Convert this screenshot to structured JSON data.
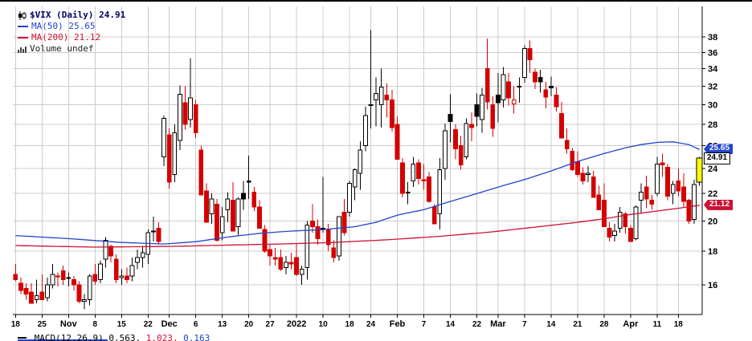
{
  "header": {
    "symbol_title": "$VIX (Daily) 24.91",
    "ma50_label": "MA(50) 25.65",
    "ma200_label": "MA(200) 21.12",
    "volume_label": "Volume undef"
  },
  "price_labels": {
    "ma50": "25.65",
    "last": "24.91",
    "ma200": "21.12"
  },
  "footer": {
    "macd_text": "MACD(12,26,9) 0.563,",
    "signal_text": "1.023,",
    "hist_text": "0.163"
  },
  "colors": {
    "ma50": "#2244cc",
    "ma200": "#cc1133",
    "up": "#000000",
    "down": "#d40000",
    "grid": "#cccccc",
    "highlight": "#ffff00",
    "title": "#000066"
  },
  "chart_data": {
    "type": "candlestick",
    "symbol": "$VIX",
    "timeframe": "Daily",
    "last_close": 24.91,
    "volume": "undef",
    "y_axis": {
      "scale": "log",
      "ticks": [
        16,
        18,
        20,
        22,
        24,
        26,
        28,
        30,
        32,
        34,
        36,
        38
      ]
    },
    "x_ticks": [
      {
        "i": 0,
        "label": "18"
      },
      {
        "i": 5,
        "label": "25"
      },
      {
        "i": 10,
        "label": "Nov",
        "bold": true
      },
      {
        "i": 15,
        "label": "8"
      },
      {
        "i": 20,
        "label": "15"
      },
      {
        "i": 25,
        "label": "22"
      },
      {
        "i": 29,
        "label": "Dec",
        "bold": true
      },
      {
        "i": 34,
        "label": "6"
      },
      {
        "i": 39,
        "label": "13"
      },
      {
        "i": 44,
        "label": "20"
      },
      {
        "i": 48,
        "label": "27"
      },
      {
        "i": 53,
        "label": "2022",
        "bold": true
      },
      {
        "i": 58,
        "label": "10"
      },
      {
        "i": 63,
        "label": "18"
      },
      {
        "i": 67,
        "label": "24"
      },
      {
        "i": 72,
        "label": "Feb",
        "bold": true
      },
      {
        "i": 77,
        "label": "7"
      },
      {
        "i": 82,
        "label": "14"
      },
      {
        "i": 87,
        "label": "22"
      },
      {
        "i": 91,
        "label": "Mar",
        "bold": true
      },
      {
        "i": 96,
        "label": "7"
      },
      {
        "i": 101,
        "label": "14"
      },
      {
        "i": 106,
        "label": "21"
      },
      {
        "i": 111,
        "label": "28"
      },
      {
        "i": 116,
        "label": "Apr",
        "bold": true
      },
      {
        "i": 121,
        "label": "11"
      },
      {
        "i": 125,
        "label": "18"
      }
    ],
    "candles": [
      [
        16.6,
        17.2,
        16.2,
        16.3
      ],
      [
        16.1,
        16.4,
        15.5,
        15.7
      ],
      [
        15.8,
        16.1,
        15.2,
        15.5
      ],
      [
        15.6,
        16.1,
        15.0,
        15.0
      ],
      [
        15.2,
        16.3,
        15.0,
        15.4
      ],
      [
        15.6,
        16.6,
        15.2,
        15.2
      ],
      [
        15.3,
        16.4,
        15.1,
        16.0
      ],
      [
        16.0,
        17.2,
        15.8,
        16.6
      ],
      [
        16.5,
        16.7,
        15.9,
        16.5
      ],
      [
        16.8,
        17.1,
        16.0,
        16.3
      ],
      [
        16.4,
        16.7,
        15.9,
        16.4
      ],
      [
        16.3,
        16.5,
        15.7,
        16.0
      ],
      [
        16.0,
        16.2,
        15.0,
        15.1
      ],
      [
        15.1,
        15.5,
        14.7,
        15.2
      ],
      [
        15.2,
        16.6,
        14.9,
        16.5
      ],
      [
        16.6,
        17.2,
        16.0,
        16.2
      ],
      [
        16.3,
        17.4,
        16.1,
        17.2
      ],
      [
        17.5,
        18.9,
        17.0,
        18.7
      ],
      [
        18.3,
        18.4,
        17.3,
        17.7
      ],
      [
        17.5,
        17.8,
        16.1,
        16.3
      ],
      [
        16.4,
        16.9,
        16.0,
        16.5
      ],
      [
        16.5,
        17.0,
        16.1,
        16.3
      ],
      [
        16.5,
        17.6,
        16.2,
        17.1
      ],
      [
        17.3,
        18.1,
        16.9,
        17.6
      ],
      [
        17.6,
        18.3,
        17.0,
        17.9
      ],
      [
        17.8,
        19.4,
        17.2,
        19.2
      ],
      [
        19.3,
        20.3,
        18.6,
        19.3
      ],
      [
        19.5,
        19.9,
        18.4,
        18.6
      ],
      [
        25.0,
        28.9,
        24.2,
        28.6
      ],
      [
        27.0,
        27.6,
        22.4,
        22.9
      ],
      [
        23.5,
        28.0,
        22.9,
        27.2
      ],
      [
        26.5,
        32.1,
        25.6,
        31.1
      ],
      [
        30.2,
        32.0,
        27.5,
        28.0
      ],
      [
        28.5,
        35.3,
        27.7,
        30.7
      ],
      [
        30.0,
        30.5,
        26.7,
        27.2
      ],
      [
        25.6,
        26.0,
        21.9,
        21.9
      ],
      [
        22.2,
        22.8,
        19.9,
        19.9
      ],
      [
        20.5,
        22.0,
        19.8,
        21.6
      ],
      [
        21.2,
        21.6,
        18.6,
        18.7
      ],
      [
        19.2,
        21.0,
        18.7,
        20.3
      ],
      [
        20.8,
        22.1,
        19.9,
        21.6
      ],
      [
        21.5,
        22.9,
        19.3,
        19.3
      ],
      [
        19.6,
        21.7,
        19.0,
        21.6
      ],
      [
        22.0,
        23.0,
        20.8,
        21.6
      ],
      [
        23.0,
        25.1,
        21.6,
        22.9
      ],
      [
        22.1,
        22.5,
        20.7,
        21.0
      ],
      [
        21.0,
        21.5,
        19.5,
        19.5
      ],
      [
        19.4,
        19.7,
        17.9,
        18.0
      ],
      [
        18.1,
        18.4,
        17.1,
        17.7
      ],
      [
        17.6,
        18.2,
        17.1,
        17.5
      ],
      [
        17.6,
        18.1,
        16.8,
        16.9
      ],
      [
        17.0,
        17.7,
        16.6,
        17.3
      ],
      [
        17.3,
        17.9,
        16.9,
        17.2
      ],
      [
        17.6,
        18.5,
        16.5,
        16.6
      ],
      [
        16.6,
        17.1,
        16.0,
        16.9
      ],
      [
        17.0,
        20.0,
        16.3,
        19.7
      ],
      [
        20.0,
        21.2,
        19.2,
        19.6
      ],
      [
        19.6,
        20.1,
        18.4,
        18.8
      ],
      [
        19.5,
        23.3,
        19.2,
        19.4
      ],
      [
        19.4,
        19.8,
        18.0,
        18.4
      ],
      [
        18.2,
        18.7,
        17.3,
        17.6
      ],
      [
        17.7,
        20.3,
        17.4,
        20.3
      ],
      [
        20.6,
        21.6,
        19.0,
        19.2
      ],
      [
        20.6,
        23.0,
        20.3,
        22.8
      ],
      [
        22.5,
        24.0,
        21.5,
        23.9
      ],
      [
        23.6,
        26.4,
        22.3,
        25.6
      ],
      [
        26.0,
        29.8,
        25.5,
        28.9
      ],
      [
        30.0,
        38.9,
        27.6,
        29.9
      ],
      [
        30.5,
        33.0,
        27.8,
        31.2
      ],
      [
        30.0,
        34.0,
        27.7,
        31.9
      ],
      [
        31.0,
        32.3,
        28.7,
        30.5
      ],
      [
        30.5,
        31.6,
        27.3,
        27.7
      ],
      [
        28.0,
        28.8,
        24.8,
        24.8
      ],
      [
        24.5,
        24.9,
        21.7,
        22.0
      ],
      [
        22.1,
        22.9,
        21.2,
        22.1
      ],
      [
        23.0,
        25.0,
        22.5,
        24.4
      ],
      [
        24.5,
        24.8,
        22.7,
        23.2
      ],
      [
        23.1,
        24.4,
        22.3,
        23.0
      ],
      [
        23.3,
        23.7,
        21.3,
        21.4
      ],
      [
        21.0,
        21.2,
        19.8,
        19.8
      ],
      [
        20.5,
        24.9,
        19.4,
        23.9
      ],
      [
        24.0,
        28.1,
        23.1,
        27.4
      ],
      [
        29.0,
        31.1,
        26.3,
        28.3
      ],
      [
        27.5,
        28.0,
        24.8,
        25.7
      ],
      [
        26.0,
        26.9,
        23.9,
        24.3
      ],
      [
        25.0,
        28.6,
        24.8,
        28.1
      ],
      [
        28.0,
        29.2,
        26.4,
        27.7
      ],
      [
        30.0,
        31.2,
        27.8,
        28.8
      ],
      [
        28.5,
        31.8,
        27.2,
        31.0
      ],
      [
        34.0,
        37.8,
        29.5,
        30.3
      ],
      [
        30.0,
        30.9,
        26.8,
        27.6
      ],
      [
        31.0,
        33.5,
        28.2,
        30.2
      ],
      [
        30.5,
        34.2,
        29.7,
        33.3
      ],
      [
        32.5,
        33.5,
        29.9,
        30.7
      ],
      [
        30.1,
        32.0,
        29.1,
        30.5
      ],
      [
        32.0,
        33.0,
        30.2,
        32.0
      ],
      [
        33.0,
        36.9,
        32.4,
        36.5
      ],
      [
        36.5,
        37.5,
        33.5,
        35.1
      ],
      [
        33.6,
        34.0,
        31.7,
        32.5
      ],
      [
        33.0,
        33.9,
        31.3,
        32.5
      ],
      [
        31.6,
        32.5,
        29.6,
        30.8
      ],
      [
        32.0,
        33.1,
        30.9,
        31.8
      ],
      [
        31.0,
        31.9,
        29.3,
        29.8
      ],
      [
        29.1,
        30.3,
        26.7,
        26.7
      ],
      [
        26.5,
        27.6,
        25.3,
        25.7
      ],
      [
        25.5,
        25.8,
        23.8,
        23.9
      ],
      [
        24.6,
        25.5,
        23.3,
        23.5
      ],
      [
        23.6,
        24.1,
        22.7,
        23.0
      ],
      [
        23.5,
        24.2,
        22.9,
        23.6
      ],
      [
        23.3,
        23.8,
        21.7,
        21.7
      ],
      [
        21.9,
        22.6,
        20.8,
        20.8
      ],
      [
        21.5,
        22.8,
        19.6,
        19.6
      ],
      [
        19.5,
        19.9,
        18.6,
        18.9
      ],
      [
        19.0,
        19.8,
        18.6,
        19.3
      ],
      [
        19.5,
        21.0,
        19.2,
        20.6
      ],
      [
        20.5,
        20.6,
        19.1,
        19.6
      ],
      [
        19.5,
        19.7,
        18.6,
        18.6
      ],
      [
        18.8,
        21.1,
        18.7,
        21.0
      ],
      [
        21.5,
        22.8,
        20.5,
        22.1
      ],
      [
        22.5,
        23.4,
        20.9,
        21.6
      ],
      [
        21.5,
        21.9,
        20.8,
        21.2
      ],
      [
        22.0,
        25.0,
        21.8,
        24.4
      ],
      [
        24.5,
        25.3,
        23.3,
        24.3
      ],
      [
        24.1,
        24.4,
        21.5,
        21.8
      ],
      [
        22.0,
        23.0,
        21.2,
        22.7
      ],
      [
        23.0,
        24.0,
        21.8,
        22.2
      ],
      [
        22.5,
        23.6,
        21.0,
        21.4
      ],
      [
        21.5,
        21.6,
        19.8,
        20.0
      ],
      [
        20.1,
        23.1,
        19.8,
        22.7
      ],
      [
        22.9,
        25.0,
        22.6,
        24.91
      ]
    ],
    "ma50": {
      "name": "MA(50)",
      "current": 25.65,
      "points": [
        [
          0,
          19.0
        ],
        [
          10,
          18.8
        ],
        [
          20,
          18.55
        ],
        [
          28,
          18.45
        ],
        [
          34,
          18.6
        ],
        [
          40,
          18.9
        ],
        [
          46,
          19.15
        ],
        [
          52,
          19.3
        ],
        [
          58,
          19.4
        ],
        [
          64,
          19.6
        ],
        [
          68,
          19.9
        ],
        [
          72,
          20.4
        ],
        [
          77,
          20.8
        ],
        [
          82,
          21.4
        ],
        [
          87,
          22.0
        ],
        [
          91,
          22.5
        ],
        [
          96,
          23.1
        ],
        [
          101,
          23.8
        ],
        [
          106,
          24.6
        ],
        [
          111,
          25.3
        ],
        [
          115,
          25.8
        ],
        [
          118,
          26.1
        ],
        [
          121,
          26.3
        ],
        [
          124,
          26.35
        ],
        [
          127,
          26.1
        ],
        [
          129,
          25.65
        ]
      ]
    },
    "ma200": {
      "name": "MA(200)",
      "current": 21.12,
      "points": [
        [
          0,
          18.35
        ],
        [
          15,
          18.25
        ],
        [
          30,
          18.3
        ],
        [
          40,
          18.38
        ],
        [
          50,
          18.45
        ],
        [
          60,
          18.55
        ],
        [
          70,
          18.72
        ],
        [
          80,
          18.95
        ],
        [
          90,
          19.25
        ],
        [
          100,
          19.65
        ],
        [
          106,
          19.9
        ],
        [
          111,
          20.15
        ],
        [
          116,
          20.45
        ],
        [
          121,
          20.7
        ],
        [
          125,
          20.9
        ],
        [
          129,
          21.12
        ]
      ]
    }
  }
}
